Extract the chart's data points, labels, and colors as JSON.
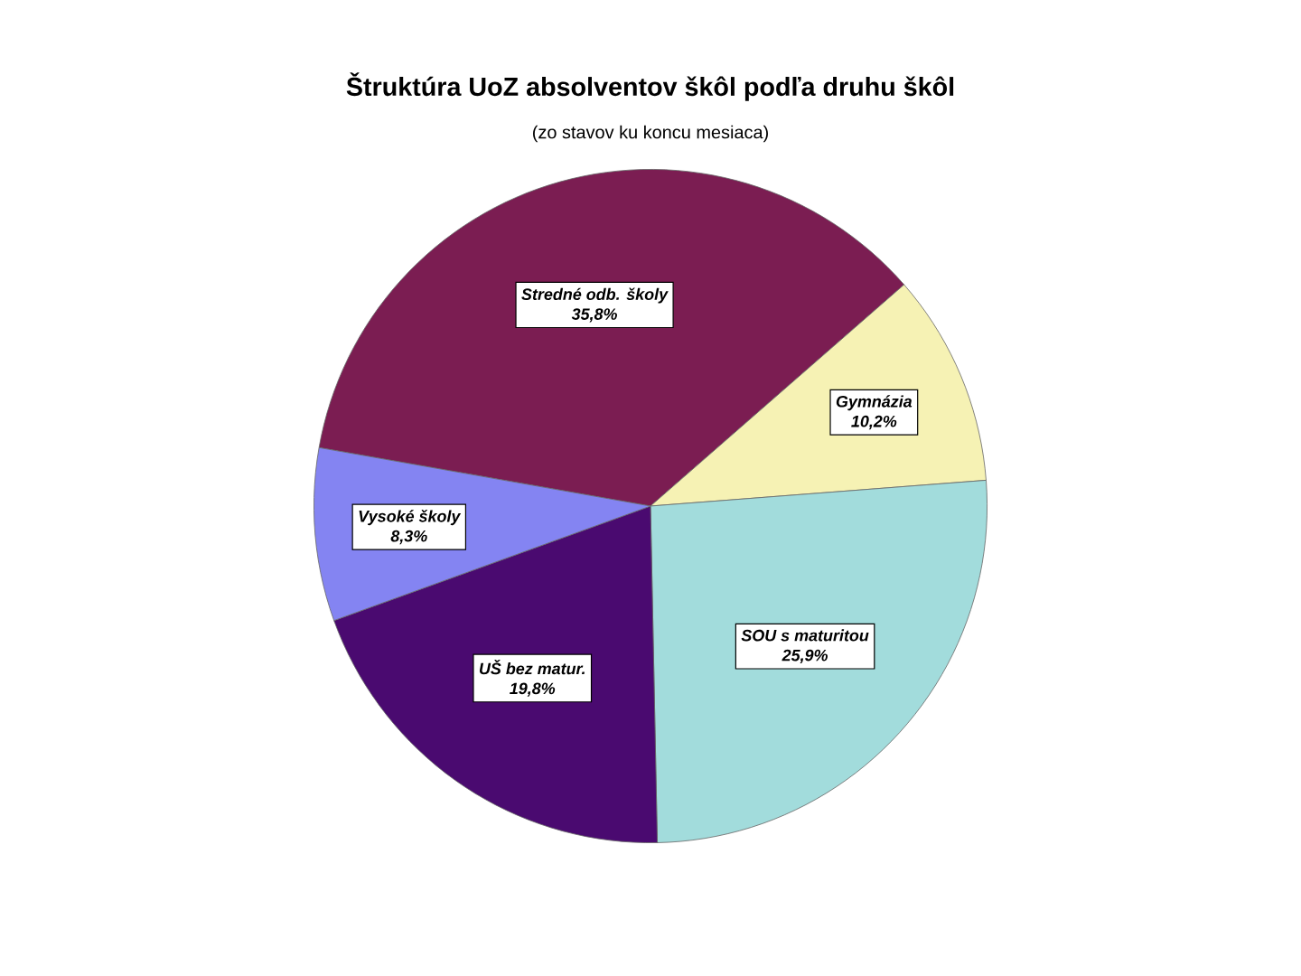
{
  "chart_data": {
    "type": "pie",
    "title": "Štruktúra UoZ absolventov škôl podľa druhu škôl",
    "subtitle": "(zo stavov ku koncu mesiaca)",
    "categories": [
      "Stredné odb. školy",
      "Gymnázia",
      "SOU s maturitou",
      "UŠ bez matur.",
      "Vysoké školy"
    ],
    "values": [
      35.8,
      10.2,
      25.9,
      19.8,
      8.3
    ],
    "value_labels": [
      "35,8%",
      "10,2%",
      "25,9%",
      "19,8%",
      "8,3%"
    ],
    "colors": [
      "#7b1d52",
      "#f6f2b4",
      "#a2dcdc",
      "#4a0a70",
      "#8484f2"
    ]
  }
}
